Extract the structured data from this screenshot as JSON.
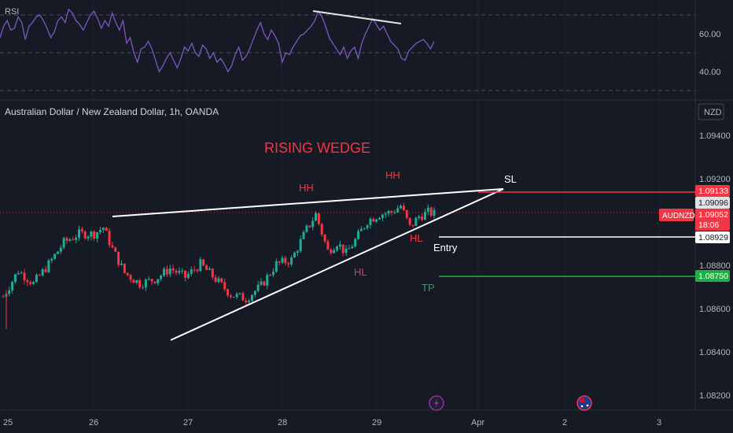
{
  "chart_data": [
    {
      "type": "line",
      "title": "RSI",
      "ylim": [
        30,
        76
      ],
      "yticks": [
        60.0,
        40.0
      ],
      "yticks_text": [
        "60.00",
        "40.00"
      ],
      "levels": [
        70,
        50,
        30
      ],
      "series": [
        {
          "color": "#7e57c2",
          "values": [
            58,
            64,
            67,
            62,
            63,
            69,
            66,
            57,
            64,
            66,
            69,
            70,
            67,
            63,
            58,
            61,
            67,
            69,
            66,
            73,
            71,
            67,
            65,
            62,
            66,
            70,
            72,
            68,
            63,
            67,
            64,
            71,
            66,
            62,
            67,
            55,
            58,
            50,
            45,
            52,
            53,
            56,
            52,
            46,
            40,
            43,
            47,
            50,
            46,
            42,
            47,
            53,
            51,
            55,
            50,
            48,
            54,
            52,
            47,
            50,
            45,
            47,
            44,
            40,
            43,
            49,
            53,
            46,
            48,
            52,
            57,
            62,
            66,
            60,
            57,
            62,
            59,
            55,
            45,
            50,
            49,
            53,
            56,
            59,
            60,
            62,
            64,
            67,
            72,
            69,
            64,
            58,
            55,
            52,
            49,
            53,
            47,
            51,
            53,
            47,
            55,
            60,
            64,
            68,
            65,
            62,
            64,
            60,
            56,
            54,
            52,
            47,
            46,
            51,
            53,
            55,
            56,
            57,
            55,
            52,
            56
          ]
        }
      ],
      "annotations": [
        {
          "type": "trendline",
          "label": "RSI divergence line",
          "from_value": 73,
          "to_value": 66
        }
      ]
    },
    {
      "type": "candlestick",
      "title": "Australian Dollar / New Zealand Dollar, 1h, OANDA",
      "currency": "NZD",
      "ylim": [
        1.0815,
        1.0946
      ],
      "yticks": [
        1.094,
        1.092,
        1.088,
        1.086,
        1.084,
        1.082
      ],
      "yticks_text": [
        "1.09400",
        "1.09200",
        "1.08800",
        "1.08600",
        "1.08400",
        "1.08200"
      ],
      "xticks_text": [
        "25",
        "26",
        "27",
        "28",
        "29",
        "Apr",
        "2",
        "3"
      ],
      "last_close": 1.09052,
      "price_labels": [
        {
          "text": "1.09133",
          "color": "#f23645"
        },
        {
          "text": "1.09096",
          "color": "#dfe1e6"
        },
        {
          "symbol": "AUDNZD",
          "text": "1.09052",
          "countdown": "18:06",
          "color": "#f23645"
        },
        {
          "text": "1.08929",
          "color": "#ffffff"
        },
        {
          "text": "1.08750",
          "color": "#22ab46"
        }
      ],
      "colors": {
        "up": "#22ab94",
        "down": "#f23645",
        "background": "#161a25",
        "grid": "#2a2e39"
      }
    }
  ],
  "annotations": {
    "pattern_title": "RISING WEDGE",
    "hh_1": "HH",
    "hh_2": "HH",
    "hl_1": "HL",
    "hl_2": "HL",
    "sl": "SL",
    "entry": "Entry",
    "tp": "TP"
  },
  "price_labels_text": {
    "sl_price": "1.09133",
    "bid_price": "1.09096",
    "symbol": "AUDNZD",
    "last_price": "1.09052",
    "countdown": "18:06",
    "entry_price": "1.08929",
    "tp_price": "1.08750"
  },
  "axis": {
    "rsi_label": "RSI",
    "rsi_60": "60.00",
    "rsi_40": "40.00",
    "currency": "NZD",
    "p_09400": "1.09400",
    "p_09200": "1.09200",
    "p_08800": "1.08800",
    "p_08600": "1.08600",
    "p_08400": "1.08400",
    "p_08200": "1.08200",
    "x_25": "25",
    "x_26": "26",
    "x_27": "27",
    "x_28": "28",
    "x_29": "29",
    "x_apr": "Apr",
    "x_2": "2",
    "x_3": "3"
  },
  "header": {
    "title": "Australian Dollar / New Zealand Dollar, 1h, OANDA"
  },
  "icons": [
    "lightning-icon",
    "australia-flag-icon"
  ]
}
